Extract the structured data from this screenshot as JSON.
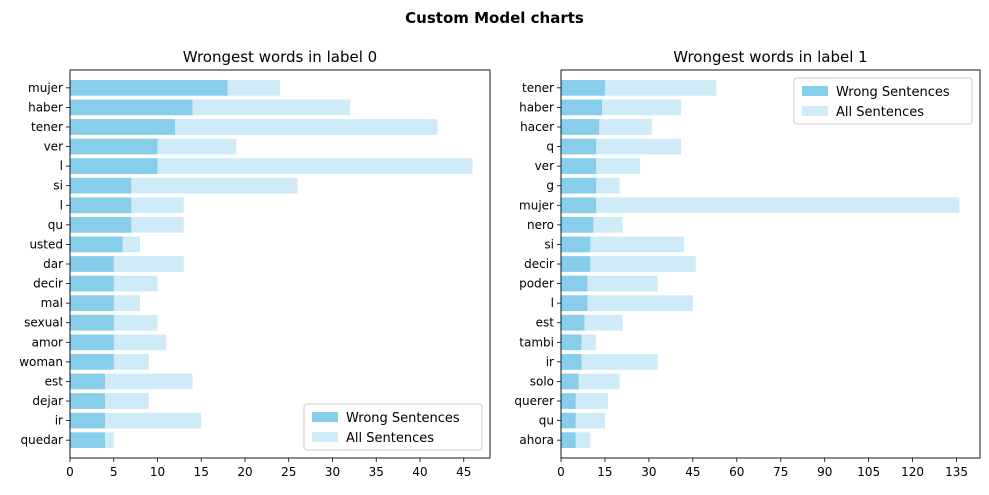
{
  "figure_title": "Custom Model charts",
  "chart_data": [
    {
      "type": "bar",
      "orientation": "horizontal",
      "title": "Wrongest words in label 0",
      "categories": [
        "mujer",
        "haber",
        "tener",
        "ver",
        "l",
        "si",
        "l",
        "qu",
        "usted",
        "dar",
        "decir",
        "mal",
        "sexual",
        "amor",
        "woman",
        "est",
        "dejar",
        "ir",
        "quedar"
      ],
      "series": [
        {
          "name": "Wrong Sentences",
          "color": "#87ceeb",
          "values": [
            18,
            14,
            12,
            10,
            10,
            7,
            7,
            7,
            6,
            5,
            5,
            5,
            5,
            5,
            5,
            4,
            4,
            4,
            4
          ]
        },
        {
          "name": "All Sentences",
          "color": "#87ceeb",
          "alpha": 0.4,
          "values": [
            24,
            32,
            42,
            19,
            46,
            26,
            13,
            13,
            8,
            13,
            10,
            8,
            10,
            11,
            9,
            14,
            9,
            15,
            5
          ]
        }
      ],
      "xlim": [
        0,
        48
      ],
      "xticks": [
        0,
        5,
        10,
        15,
        20,
        25,
        30,
        35,
        40,
        45
      ],
      "legend_position": "lower-right"
    },
    {
      "type": "bar",
      "orientation": "horizontal",
      "title": "Wrongest words in label 1",
      "categories": [
        "tener",
        "haber",
        "hacer",
        "q",
        "ver",
        "g",
        "mujer",
        "nero",
        "si",
        "decir",
        "poder",
        "l",
        "est",
        "tambi",
        "ir",
        "solo",
        "querer",
        "qu",
        "ahora"
      ],
      "series": [
        {
          "name": "Wrong Sentences",
          "color": "#87ceeb",
          "values": [
            15,
            14,
            13,
            12,
            12,
            12,
            12,
            11,
            10,
            10,
            9,
            9,
            8,
            7,
            7,
            6,
            5,
            5,
            5
          ]
        },
        {
          "name": "All Sentences",
          "color": "#87ceeb",
          "alpha": 0.4,
          "values": [
            53,
            41,
            31,
            41,
            27,
            20,
            136,
            21,
            42,
            46,
            33,
            45,
            21,
            12,
            33,
            20,
            16,
            15,
            10
          ]
        }
      ],
      "xlim": [
        0,
        143
      ],
      "xticks": [
        0,
        15,
        30,
        45,
        60,
        75,
        90,
        105,
        120,
        135
      ],
      "legend_position": "upper-right"
    }
  ]
}
